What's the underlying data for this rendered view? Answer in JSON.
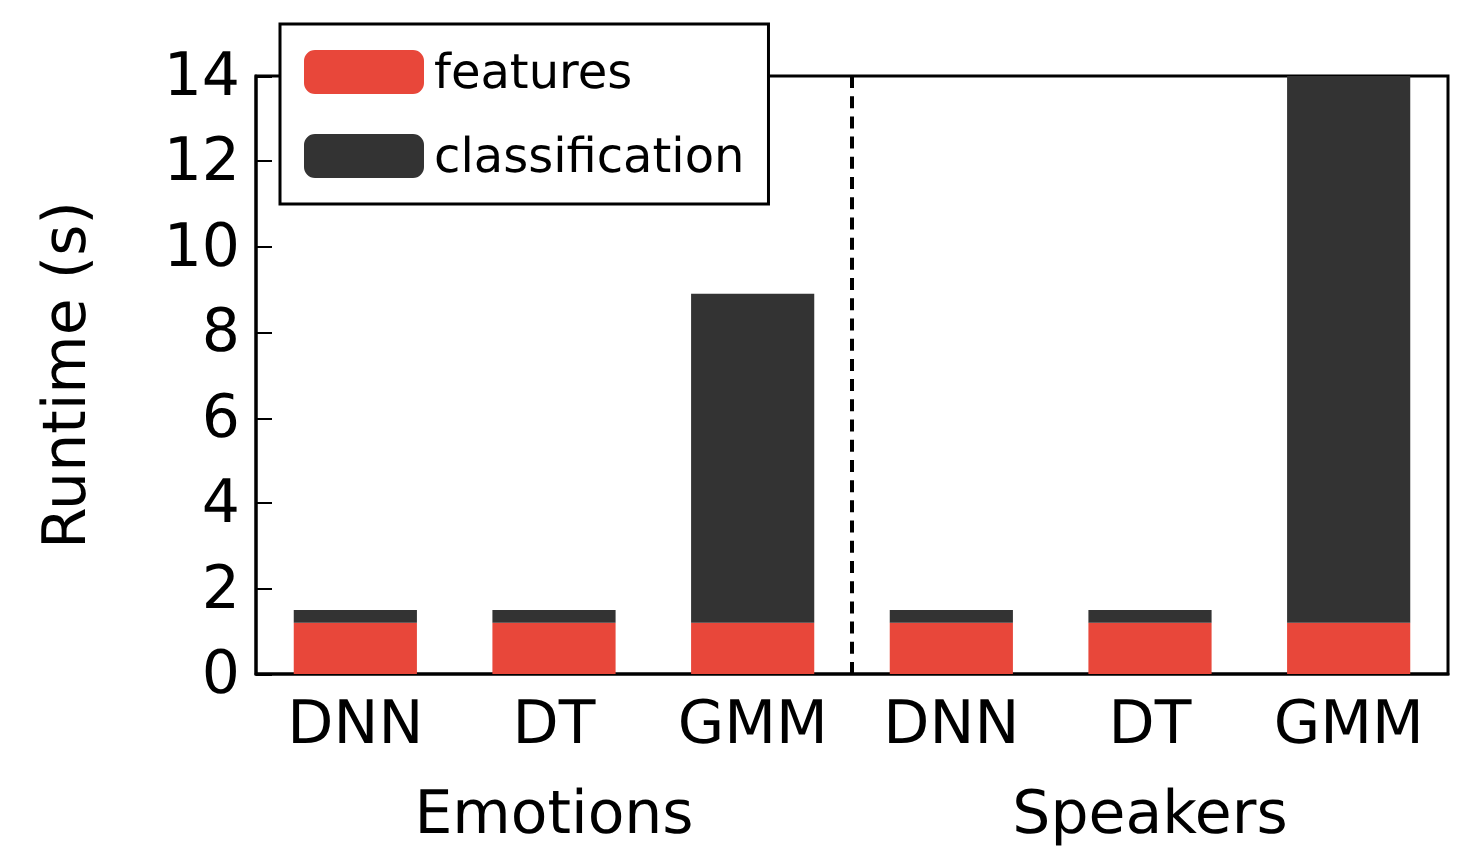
{
  "chart_data": {
    "type": "bar",
    "stacked": true,
    "ylabel": "Runtime (s)",
    "categories": [
      "DNN",
      "DT",
      "GMM",
      "DNN",
      "DT",
      "GMM"
    ],
    "series": [
      {
        "name": "features",
        "color": "#e8473a",
        "values": [
          1.2,
          1.2,
          1.2,
          1.2,
          1.2,
          1.2
        ]
      },
      {
        "name": "classification",
        "color": "#333333",
        "values": [
          0.3,
          0.3,
          7.7,
          0.3,
          0.3,
          12.8
        ]
      }
    ],
    "ylim": [
      0,
      14
    ],
    "yticks": [
      0,
      2,
      4,
      6,
      8,
      10,
      12,
      14
    ],
    "annotations": [
      "Emotions",
      "Speakers"
    ],
    "legend": "top left",
    "grid": false
  }
}
